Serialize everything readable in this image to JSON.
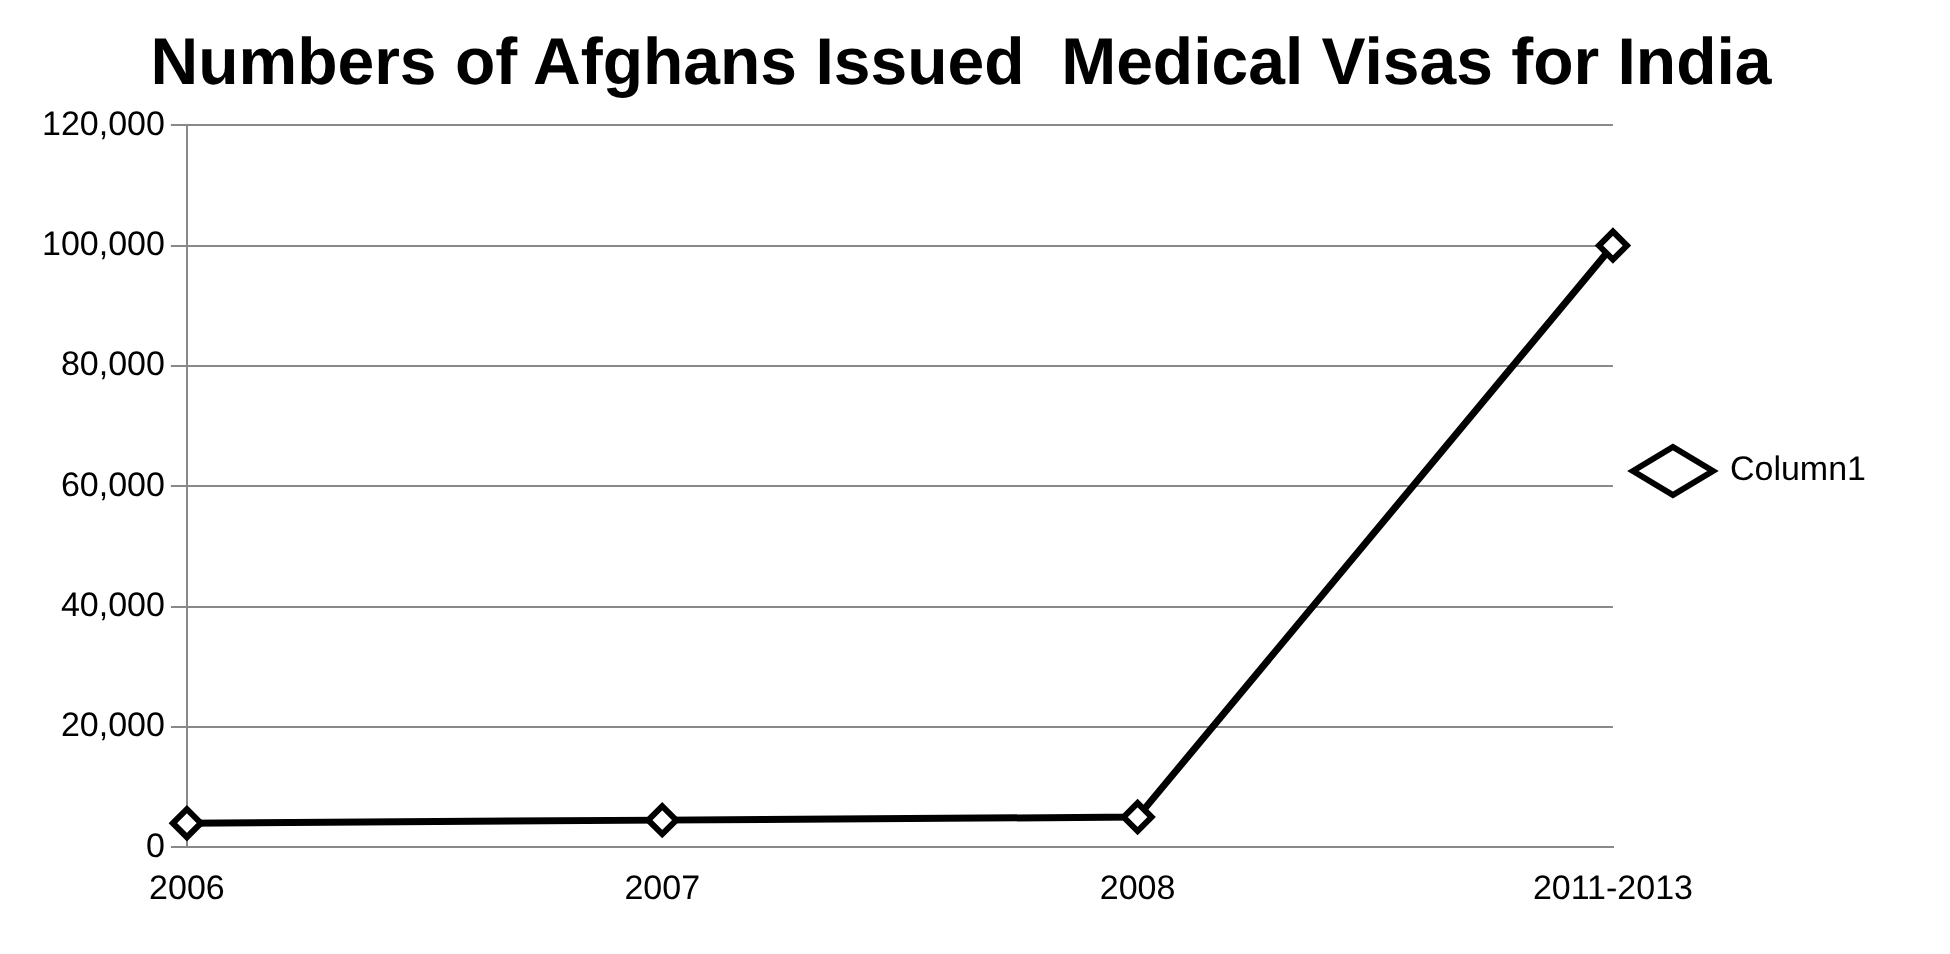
{
  "chart_data": {
    "type": "line",
    "title": "Numbers of Afghans Issued  Medical Visas for India",
    "categories": [
      "2006",
      "2007",
      "2008",
      "2011-2013"
    ],
    "series": [
      {
        "name": "Column1",
        "color": "#000000",
        "values": [
          4000,
          4500,
          5000,
          100000
        ]
      }
    ],
    "ylim": [
      0,
      120000
    ],
    "yticks": [
      {
        "value": 0,
        "label": "0"
      },
      {
        "value": 20000,
        "label": "20,000"
      },
      {
        "value": 40000,
        "label": "40,000"
      },
      {
        "value": 60000,
        "label": "60,000"
      },
      {
        "value": 80000,
        "label": "80,000"
      },
      {
        "value": 100000,
        "label": "100,000"
      },
      {
        "value": 120000,
        "label": "120,000"
      }
    ],
    "grid": "y",
    "legend": "right",
    "marker": "diamond",
    "line_style": "solid"
  }
}
